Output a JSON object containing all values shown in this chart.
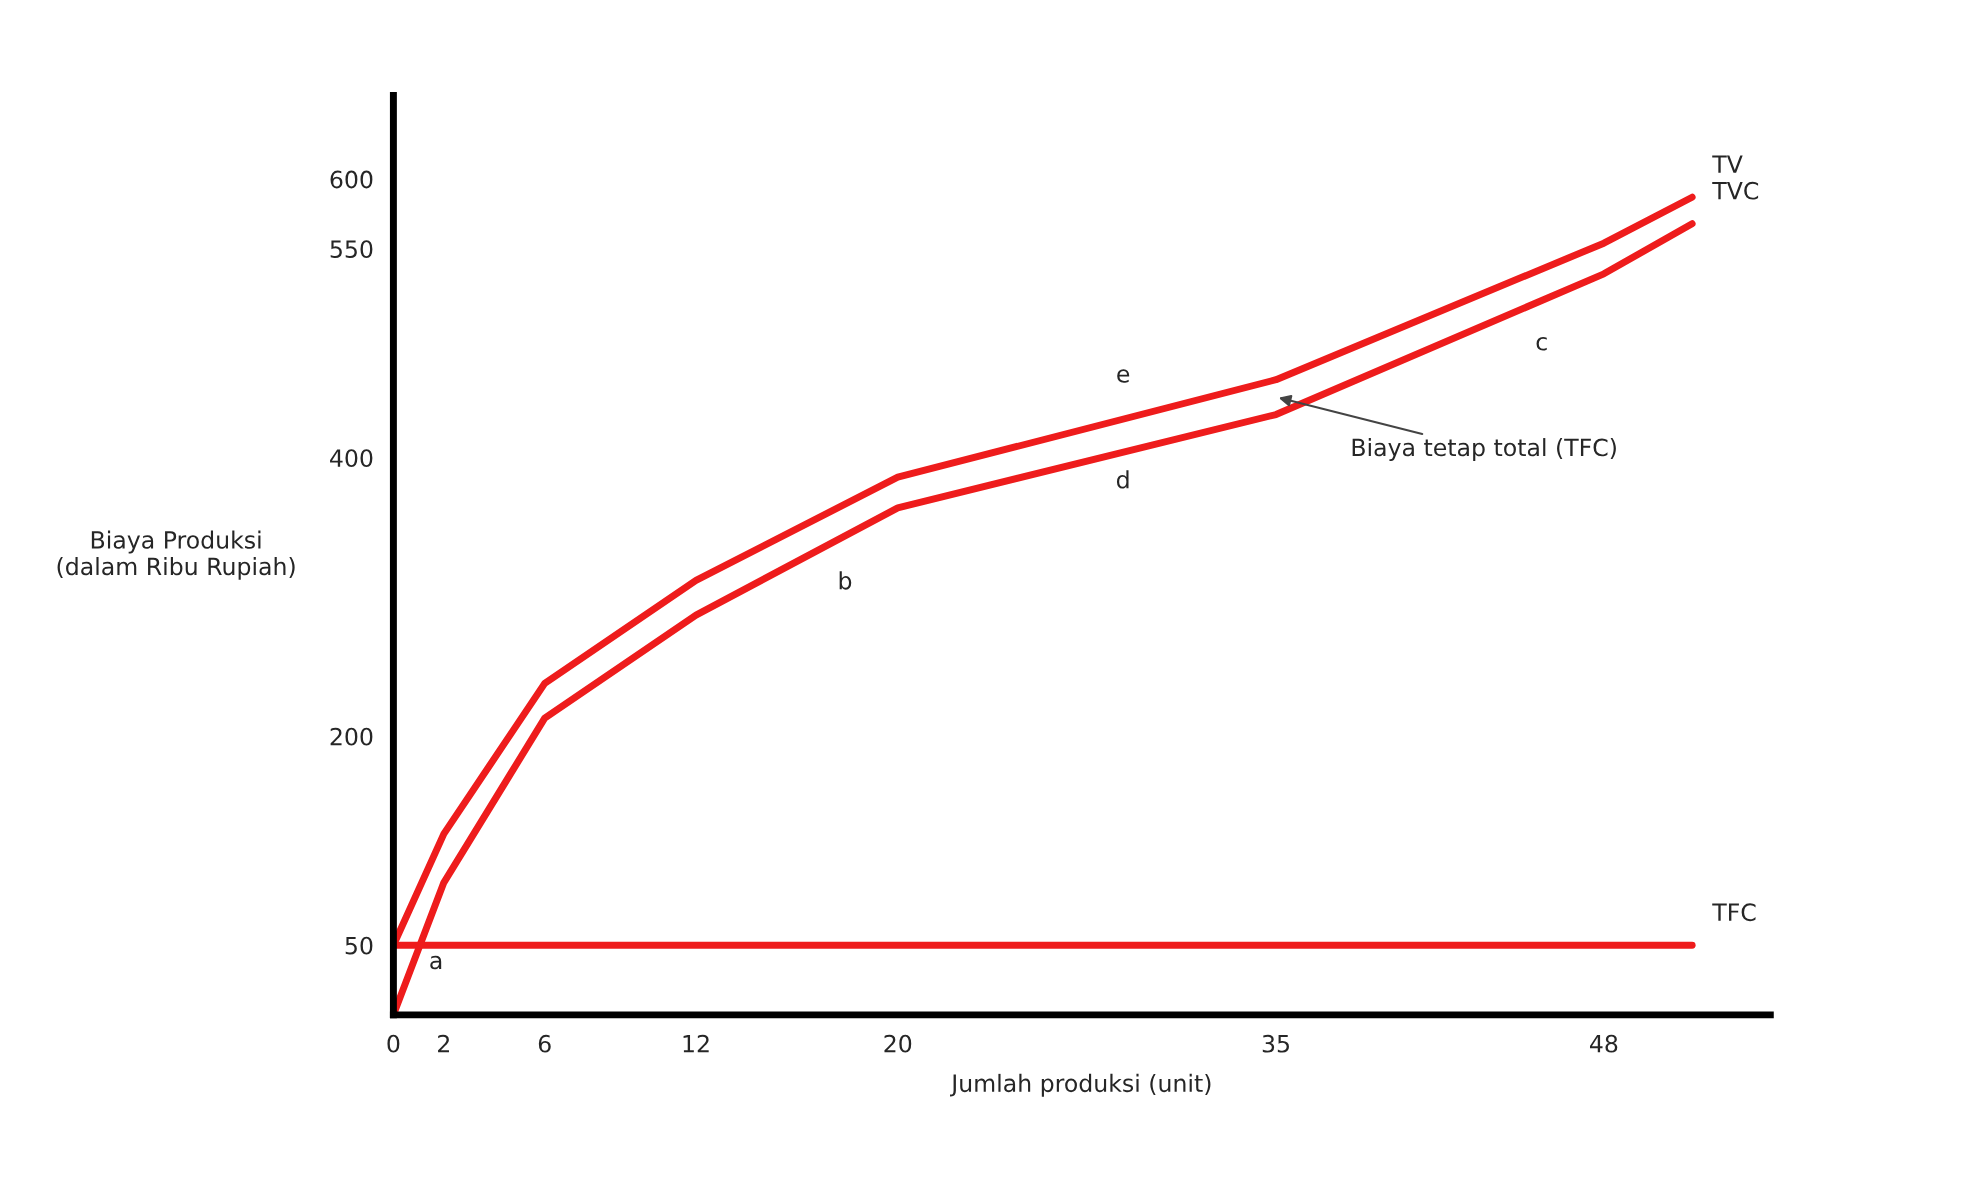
{
  "chart_data": {
    "type": "line",
    "xlabel": "Jumlah produksi (unit)",
    "ylabel": "Biaya Produksi\n(dalam Ribu Rupiah)",
    "series": [
      {
        "name": "TV",
        "color": "#ee1c1c",
        "x": [
          0,
          2,
          6,
          12,
          20,
          35,
          48,
          51.5
        ],
        "values": [
          50,
          130,
          238,
          312,
          386,
          456,
          554,
          587
        ]
      },
      {
        "name": "TVC",
        "color": "#ee1c1c",
        "x": [
          0,
          2,
          6,
          12,
          20,
          35,
          48,
          51.5
        ],
        "values": [
          0,
          95,
          213,
          287,
          364,
          431,
          532,
          568
        ]
      },
      {
        "name": "TFC",
        "color": "#ee1c1c",
        "x": [
          0,
          51.5
        ],
        "values": [
          50,
          50
        ]
      }
    ],
    "xlim": [
      0,
      54.6
    ],
    "ylim": [
      0,
      660
    ],
    "xticks": [
      0,
      2,
      6,
      12,
      20,
      35,
      48
    ],
    "yticks": [
      50,
      200,
      400,
      550,
      600
    ],
    "grid": false,
    "legend": false,
    "marker": "none",
    "line_style": "solid",
    "annotations": [
      "a",
      "b",
      "c",
      "d",
      "e",
      "Biaya tetap total (TFC)"
    ]
  }
}
